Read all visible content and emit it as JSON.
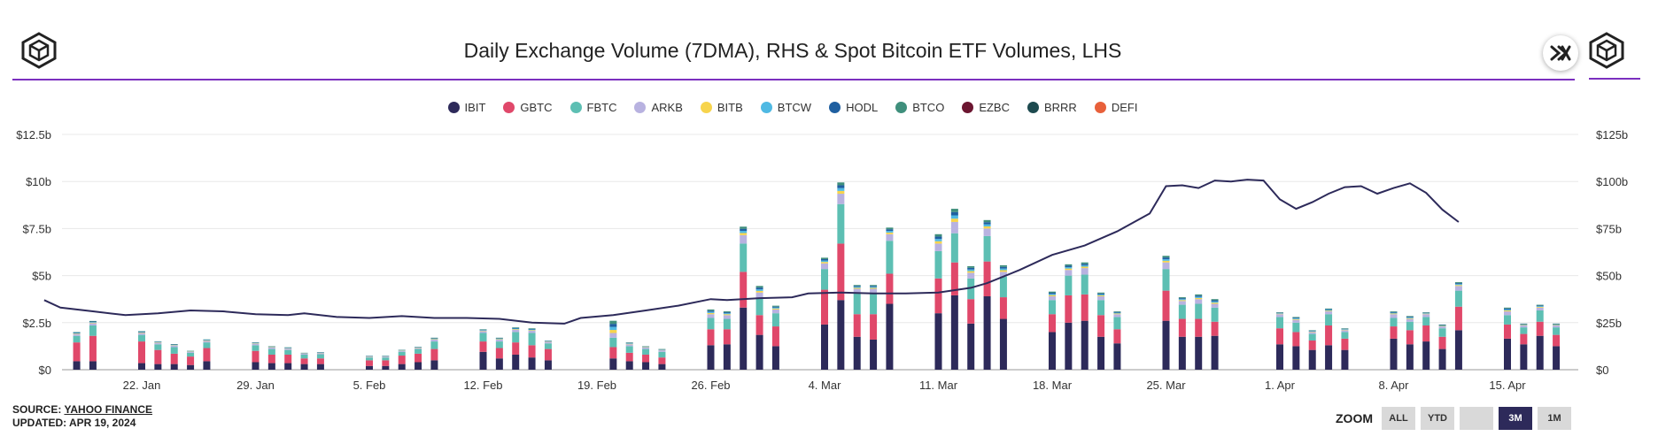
{
  "title": "Daily Exchange Volume (7DMA), RHS &  Spot Bitcoin ETF Volumes, LHS",
  "source_label": "SOURCE: ",
  "source_name": "YAHOO FINANCE",
  "updated": "UPDATED: APR 19, 2024",
  "zoom": {
    "label": "ZOOM",
    "buttons": [
      "ALL",
      "YTD",
      "",
      "3M",
      "1M"
    ],
    "active": "3M"
  },
  "legend": [
    {
      "name": "IBIT",
      "color": "#2d2a5a"
    },
    {
      "name": "GBTC",
      "color": "#e0486a"
    },
    {
      "name": "FBTC",
      "color": "#5dbfb3"
    },
    {
      "name": "ARKB",
      "color": "#b8b2e0"
    },
    {
      "name": "BITB",
      "color": "#f7d44c"
    },
    {
      "name": "BTCW",
      "color": "#4fb9e3"
    },
    {
      "name": "HODL",
      "color": "#1f5fa0"
    },
    {
      "name": "BTCO",
      "color": "#3f8f7c"
    },
    {
      "name": "EZBC",
      "color": "#6b1530"
    },
    {
      "name": "BRRR",
      "color": "#1d4a4f"
    },
    {
      "name": "DEFI",
      "color": "#e8603a"
    }
  ],
  "icons": {
    "logo": "cube-logo-icon",
    "close": "close-x-icon"
  },
  "chart_data": {
    "type": "bar",
    "stacked": true,
    "xaxis_ticks": [
      "22. Jan",
      "29. Jan",
      "5. Feb",
      "12. Feb",
      "19. Feb",
      "26. Feb",
      "4. Mar",
      "11. Mar",
      "18. Mar",
      "25. Mar",
      "1. Apr",
      "8. Apr",
      "15. Apr"
    ],
    "left_axis": {
      "ticks": [
        "$0",
        "$2.5b",
        "$5b",
        "$7.5b",
        "$10b",
        "$12.5b"
      ],
      "range": [
        0,
        12.5
      ],
      "unit": "billion USD"
    },
    "right_axis": {
      "ticks": [
        "$0",
        "$25b",
        "$50b",
        "$75b",
        "$100b",
        "$125b"
      ],
      "range": [
        0,
        125
      ],
      "unit": "billion USD"
    },
    "bars": [
      {
        "date": "2024-01-18",
        "IBIT": 0.45,
        "GBTC": 1.0,
        "FBTC": 0.35,
        "ARKB": 0.1,
        "other": 0.1
      },
      {
        "date": "2024-01-19",
        "IBIT": 0.45,
        "GBTC": 1.35,
        "FBTC": 0.55,
        "ARKB": 0.12,
        "other": 0.12
      },
      {
        "date": "2024-01-22",
        "IBIT": 0.35,
        "GBTC": 1.15,
        "FBTC": 0.35,
        "ARKB": 0.1,
        "other": 0.1
      },
      {
        "date": "2024-01-23",
        "IBIT": 0.3,
        "GBTC": 0.75,
        "FBTC": 0.3,
        "ARKB": 0.08,
        "other": 0.08
      },
      {
        "date": "2024-01-24",
        "IBIT": 0.3,
        "GBTC": 0.55,
        "FBTC": 0.35,
        "ARKB": 0.08,
        "other": 0.08
      },
      {
        "date": "2024-01-25",
        "IBIT": 0.25,
        "GBTC": 0.45,
        "FBTC": 0.2,
        "ARKB": 0.05,
        "other": 0.06
      },
      {
        "date": "2024-01-26",
        "IBIT": 0.45,
        "GBTC": 0.7,
        "FBTC": 0.3,
        "ARKB": 0.08,
        "other": 0.08
      },
      {
        "date": "2024-01-29",
        "IBIT": 0.4,
        "GBTC": 0.6,
        "FBTC": 0.3,
        "ARKB": 0.08,
        "other": 0.08
      },
      {
        "date": "2024-01-30",
        "IBIT": 0.35,
        "GBTC": 0.45,
        "FBTC": 0.3,
        "ARKB": 0.08,
        "other": 0.07
      },
      {
        "date": "2024-01-31",
        "IBIT": 0.35,
        "GBTC": 0.45,
        "FBTC": 0.25,
        "ARKB": 0.07,
        "other": 0.07
      },
      {
        "date": "2024-02-01",
        "IBIT": 0.3,
        "GBTC": 0.3,
        "FBTC": 0.2,
        "ARKB": 0.05,
        "other": 0.05
      },
      {
        "date": "2024-02-02",
        "IBIT": 0.3,
        "GBTC": 0.3,
        "FBTC": 0.22,
        "ARKB": 0.05,
        "other": 0.06
      },
      {
        "date": "2024-02-05",
        "IBIT": 0.2,
        "GBTC": 0.3,
        "FBTC": 0.15,
        "ARKB": 0.04,
        "other": 0.05
      },
      {
        "date": "2024-02-06",
        "IBIT": 0.2,
        "GBTC": 0.3,
        "FBTC": 0.15,
        "ARKB": 0.05,
        "other": 0.05
      },
      {
        "date": "2024-02-07",
        "IBIT": 0.3,
        "GBTC": 0.45,
        "FBTC": 0.2,
        "ARKB": 0.05,
        "other": 0.06
      },
      {
        "date": "2024-02-08",
        "IBIT": 0.4,
        "GBTC": 0.45,
        "FBTC": 0.25,
        "ARKB": 0.06,
        "other": 0.06
      },
      {
        "date": "2024-02-09",
        "IBIT": 0.5,
        "GBTC": 0.6,
        "FBTC": 0.4,
        "ARKB": 0.1,
        "other": 0.1
      },
      {
        "date": "2024-02-12",
        "IBIT": 0.95,
        "GBTC": 0.55,
        "FBTC": 0.45,
        "ARKB": 0.1,
        "other": 0.1
      },
      {
        "date": "2024-02-13",
        "IBIT": 0.6,
        "GBTC": 0.55,
        "FBTC": 0.35,
        "ARKB": 0.1,
        "other": 0.1
      },
      {
        "date": "2024-02-14",
        "IBIT": 0.8,
        "GBTC": 0.65,
        "FBTC": 0.55,
        "ARKB": 0.12,
        "other": 0.13
      },
      {
        "date": "2024-02-15",
        "IBIT": 0.65,
        "GBTC": 0.65,
        "FBTC": 0.65,
        "ARKB": 0.12,
        "other": 0.13
      },
      {
        "date": "2024-02-16",
        "IBIT": 0.5,
        "GBTC": 0.6,
        "FBTC": 0.3,
        "ARKB": 0.08,
        "other": 0.07
      },
      {
        "date": "2024-02-20",
        "IBIT": 0.6,
        "GBTC": 0.6,
        "FBTC": 0.5,
        "ARKB": 0.25,
        "other": 0.65
      },
      {
        "date": "2024-02-21",
        "IBIT": 0.45,
        "GBTC": 0.45,
        "FBTC": 0.35,
        "ARKB": 0.1,
        "other": 0.1
      },
      {
        "date": "2024-02-22",
        "IBIT": 0.4,
        "GBTC": 0.4,
        "FBTC": 0.3,
        "ARKB": 0.08,
        "other": 0.07
      },
      {
        "date": "2024-02-23",
        "IBIT": 0.3,
        "GBTC": 0.35,
        "FBTC": 0.3,
        "ARKB": 0.08,
        "other": 0.07
      },
      {
        "date": "2024-02-26",
        "IBIT": 1.3,
        "GBTC": 0.85,
        "FBTC": 0.6,
        "ARKB": 0.2,
        "other": 0.25
      },
      {
        "date": "2024-02-27",
        "IBIT": 1.35,
        "GBTC": 0.8,
        "FBTC": 0.55,
        "ARKB": 0.2,
        "other": 0.2
      },
      {
        "date": "2024-02-28",
        "IBIT": 3.3,
        "GBTC": 1.9,
        "FBTC": 1.5,
        "ARKB": 0.45,
        "other": 0.45
      },
      {
        "date": "2024-02-29",
        "IBIT": 1.85,
        "GBTC": 1.05,
        "FBTC": 0.9,
        "ARKB": 0.3,
        "other": 0.35
      },
      {
        "date": "2024-03-01",
        "IBIT": 1.25,
        "GBTC": 1.05,
        "FBTC": 0.7,
        "ARKB": 0.2,
        "other": 0.2
      },
      {
        "date": "2024-03-04",
        "IBIT": 2.4,
        "GBTC": 1.85,
        "FBTC": 1.1,
        "ARKB": 0.3,
        "other": 0.3
      },
      {
        "date": "2024-03-05",
        "IBIT": 3.7,
        "GBTC": 3.0,
        "FBTC": 2.1,
        "ARKB": 0.55,
        "other": 0.6
      },
      {
        "date": "2024-03-06",
        "IBIT": 1.75,
        "GBTC": 1.2,
        "FBTC": 1.15,
        "ARKB": 0.2,
        "other": 0.2
      },
      {
        "date": "2024-03-07",
        "IBIT": 1.6,
        "GBTC": 1.35,
        "FBTC": 1.15,
        "ARKB": 0.2,
        "other": 0.2
      },
      {
        "date": "2024-03-08",
        "IBIT": 3.5,
        "GBTC": 1.6,
        "FBTC": 1.75,
        "ARKB": 0.35,
        "other": 0.35
      },
      {
        "date": "2024-03-11",
        "IBIT": 3.0,
        "GBTC": 1.85,
        "FBTC": 1.45,
        "ARKB": 0.4,
        "other": 0.5
      },
      {
        "date": "2024-03-12",
        "IBIT": 3.95,
        "GBTC": 1.75,
        "FBTC": 1.55,
        "ARKB": 0.6,
        "other": 0.7
      },
      {
        "date": "2024-03-13",
        "IBIT": 2.45,
        "GBTC": 1.3,
        "FBTC": 1.1,
        "ARKB": 0.3,
        "other": 0.35
      },
      {
        "date": "2024-03-14",
        "IBIT": 3.9,
        "GBTC": 1.85,
        "FBTC": 1.35,
        "ARKB": 0.4,
        "other": 0.45
      },
      {
        "date": "2024-03-15",
        "IBIT": 2.7,
        "GBTC": 1.15,
        "FBTC": 1.1,
        "ARKB": 0.25,
        "other": 0.35
      },
      {
        "date": "2024-03-18",
        "IBIT": 2.0,
        "GBTC": 0.95,
        "FBTC": 0.75,
        "ARKB": 0.2,
        "other": 0.25
      },
      {
        "date": "2024-03-19",
        "IBIT": 2.5,
        "GBTC": 1.45,
        "FBTC": 1.05,
        "ARKB": 0.3,
        "other": 0.3
      },
      {
        "date": "2024-03-20",
        "IBIT": 2.6,
        "GBTC": 1.4,
        "FBTC": 1.05,
        "ARKB": 0.35,
        "other": 0.3
      },
      {
        "date": "2024-03-21",
        "IBIT": 1.75,
        "GBTC": 1.15,
        "FBTC": 0.8,
        "ARKB": 0.2,
        "other": 0.2
      },
      {
        "date": "2024-03-22",
        "IBIT": 1.4,
        "GBTC": 0.75,
        "FBTC": 0.65,
        "ARKB": 0.15,
        "other": 0.15
      },
      {
        "date": "2024-03-25",
        "IBIT": 2.6,
        "GBTC": 1.6,
        "FBTC": 1.15,
        "ARKB": 0.35,
        "other": 0.35
      },
      {
        "date": "2024-03-26",
        "IBIT": 1.75,
        "GBTC": 0.95,
        "FBTC": 0.75,
        "ARKB": 0.2,
        "other": 0.2
      },
      {
        "date": "2024-03-27",
        "IBIT": 1.75,
        "GBTC": 0.95,
        "FBTC": 0.8,
        "ARKB": 0.25,
        "other": 0.25
      },
      {
        "date": "2024-03-28",
        "IBIT": 1.8,
        "GBTC": 0.75,
        "FBTC": 0.75,
        "ARKB": 0.2,
        "other": 0.25
      },
      {
        "date": "2024-04-01",
        "IBIT": 1.35,
        "GBTC": 0.85,
        "FBTC": 0.6,
        "ARKB": 0.15,
        "other": 0.1
      },
      {
        "date": "2024-04-02",
        "IBIT": 1.25,
        "GBTC": 0.75,
        "FBTC": 0.5,
        "ARKB": 0.15,
        "other": 0.15
      },
      {
        "date": "2024-04-03",
        "IBIT": 1.05,
        "GBTC": 0.5,
        "FBTC": 0.35,
        "ARKB": 0.1,
        "other": 0.1
      },
      {
        "date": "2024-04-04",
        "IBIT": 1.3,
        "GBTC": 1.05,
        "FBTC": 0.6,
        "ARKB": 0.15,
        "other": 0.15
      },
      {
        "date": "2024-04-05",
        "IBIT": 1.05,
        "GBTC": 0.6,
        "FBTC": 0.35,
        "ARKB": 0.1,
        "other": 0.1
      },
      {
        "date": "2024-04-08",
        "IBIT": 1.65,
        "GBTC": 0.65,
        "FBTC": 0.45,
        "ARKB": 0.2,
        "other": 0.15
      },
      {
        "date": "2024-04-09",
        "IBIT": 1.35,
        "GBTC": 0.75,
        "FBTC": 0.45,
        "ARKB": 0.15,
        "other": 0.15
      },
      {
        "date": "2024-04-10",
        "IBIT": 1.5,
        "GBTC": 0.85,
        "FBTC": 0.45,
        "ARKB": 0.15,
        "other": 0.1
      },
      {
        "date": "2024-04-11",
        "IBIT": 1.1,
        "GBTC": 0.65,
        "FBTC": 0.45,
        "ARKB": 0.1,
        "other": 0.1
      },
      {
        "date": "2024-04-12",
        "IBIT": 2.1,
        "GBTC": 1.25,
        "FBTC": 0.85,
        "ARKB": 0.25,
        "other": 0.2
      },
      {
        "date": "2024-04-15",
        "IBIT": 1.65,
        "GBTC": 0.75,
        "FBTC": 0.5,
        "ARKB": 0.2,
        "other": 0.2
      },
      {
        "date": "2024-04-16",
        "IBIT": 1.35,
        "GBTC": 0.55,
        "FBTC": 0.35,
        "ARKB": 0.1,
        "other": 0.1
      },
      {
        "date": "2024-04-17",
        "IBIT": 1.8,
        "GBTC": 0.75,
        "FBTC": 0.6,
        "ARKB": 0.15,
        "other": 0.15
      },
      {
        "date": "2024-04-18",
        "IBIT": 1.25,
        "GBTC": 0.6,
        "FBTC": 0.4,
        "ARKB": 0.1,
        "other": 0.1
      }
    ],
    "line": [
      {
        "date": "2024-01-16",
        "v": 37
      },
      {
        "date": "2024-01-17",
        "v": 33
      },
      {
        "date": "2024-01-19",
        "v": 31
      },
      {
        "date": "2024-01-21",
        "v": 29
      },
      {
        "date": "2024-01-23",
        "v": 30
      },
      {
        "date": "2024-01-25",
        "v": 31.5
      },
      {
        "date": "2024-01-27",
        "v": 31
      },
      {
        "date": "2024-01-29",
        "v": 29.5
      },
      {
        "date": "2024-01-31",
        "v": 29
      },
      {
        "date": "2024-02-01",
        "v": 30
      },
      {
        "date": "2024-02-03",
        "v": 28
      },
      {
        "date": "2024-02-05",
        "v": 27.5
      },
      {
        "date": "2024-02-07",
        "v": 28.5
      },
      {
        "date": "2024-02-09",
        "v": 27.5
      },
      {
        "date": "2024-02-11",
        "v": 27.5
      },
      {
        "date": "2024-02-13",
        "v": 27
      },
      {
        "date": "2024-02-15",
        "v": 25
      },
      {
        "date": "2024-02-17",
        "v": 24.5
      },
      {
        "date": "2024-02-18",
        "v": 27.5
      },
      {
        "date": "2024-02-20",
        "v": 29
      },
      {
        "date": "2024-02-22",
        "v": 31.5
      },
      {
        "date": "2024-02-24",
        "v": 34
      },
      {
        "date": "2024-02-26",
        "v": 37.5
      },
      {
        "date": "2024-02-27",
        "v": 37
      },
      {
        "date": "2024-02-29",
        "v": 38
      },
      {
        "date": "2024-03-02",
        "v": 38.5
      },
      {
        "date": "2024-03-03",
        "v": 40.5
      },
      {
        "date": "2024-03-05",
        "v": 41
      },
      {
        "date": "2024-03-07",
        "v": 40.5
      },
      {
        "date": "2024-03-09",
        "v": 40.5
      },
      {
        "date": "2024-03-11",
        "v": 41
      },
      {
        "date": "2024-03-13",
        "v": 43.5
      },
      {
        "date": "2024-03-14",
        "v": 46
      },
      {
        "date": "2024-03-16",
        "v": 53
      },
      {
        "date": "2024-03-18",
        "v": 61
      },
      {
        "date": "2024-03-20",
        "v": 66
      },
      {
        "date": "2024-03-22",
        "v": 73.5
      },
      {
        "date": "2024-03-24",
        "v": 83
      },
      {
        "date": "2024-03-25",
        "v": 97.5
      },
      {
        "date": "2024-03-26",
        "v": 98
      },
      {
        "date": "2024-03-27",
        "v": 96.5
      },
      {
        "date": "2024-03-28",
        "v": 100.5
      },
      {
        "date": "2024-03-29",
        "v": 100
      },
      {
        "date": "2024-03-30",
        "v": 101
      },
      {
        "date": "2024-03-31",
        "v": 100.5
      },
      {
        "date": "2024-04-01",
        "v": 90.5
      },
      {
        "date": "2024-04-02",
        "v": 85.5
      },
      {
        "date": "2024-04-03",
        "v": 89
      },
      {
        "date": "2024-04-04",
        "v": 93.5
      },
      {
        "date": "2024-04-05",
        "v": 97
      },
      {
        "date": "2024-04-06",
        "v": 97.5
      },
      {
        "date": "2024-04-07",
        "v": 93.5
      },
      {
        "date": "2024-04-08",
        "v": 96.5
      },
      {
        "date": "2024-04-09",
        "v": 99
      },
      {
        "date": "2024-04-10",
        "v": 94
      },
      {
        "date": "2024-04-11",
        "v": 85
      },
      {
        "date": "2024-04-12",
        "v": 78.5
      }
    ]
  }
}
